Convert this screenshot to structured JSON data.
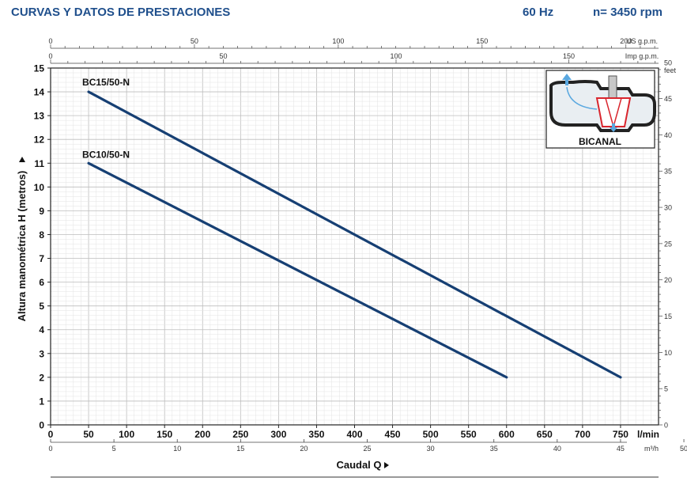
{
  "header": {
    "title": "CURVAS Y DATOS DE PRESTACIONES",
    "frequency": "60 Hz",
    "speed": "n= 3450 rpm"
  },
  "colors": {
    "header": "#1f4f8c",
    "curve": "#163f73",
    "inset_border": "#ffffff",
    "impeller": "#d9262e"
  },
  "inset": {
    "label": "BICANAL",
    "icons": [
      "bicanal-impeller-icon"
    ]
  },
  "chart_data": {
    "type": "line",
    "grid": true,
    "xlabel": "Caudal Q",
    "ylabel": "Altura manométrica H (metros)",
    "x_unit": "l/min",
    "xlim": [
      0,
      800
    ],
    "ylim": [
      0,
      15
    ],
    "x_ticks": [
      0,
      50,
      100,
      150,
      200,
      250,
      300,
      350,
      400,
      450,
      500,
      550,
      600,
      650,
      700,
      750
    ],
    "y_ticks": [
      0,
      1,
      2,
      3,
      4,
      5,
      6,
      7,
      8,
      9,
      10,
      11,
      12,
      13,
      14,
      15
    ],
    "secondary_axes": {
      "top_us": {
        "unit": "US g.p.m.",
        "ticks": [
          0,
          50,
          100,
          150,
          200
        ]
      },
      "top_imp": {
        "unit": "Imp g.p.m.",
        "ticks": [
          0,
          50,
          100,
          150
        ]
      },
      "bottom_m3h": {
        "unit": "m³/h",
        "ticks": [
          0,
          5,
          10,
          15,
          20,
          25,
          30,
          35,
          40,
          45,
          50
        ]
      },
      "right_feet": {
        "unit": "feet",
        "ticks": [
          0,
          5,
          10,
          15,
          20,
          25,
          30,
          35,
          40,
          45,
          50
        ]
      }
    },
    "series": [
      {
        "name": "BC15/50-N",
        "x": [
          50,
          750
        ],
        "y": [
          14,
          2
        ]
      },
      {
        "name": "BC10/50-N",
        "x": [
          50,
          600
        ],
        "y": [
          11,
          2
        ]
      }
    ]
  }
}
